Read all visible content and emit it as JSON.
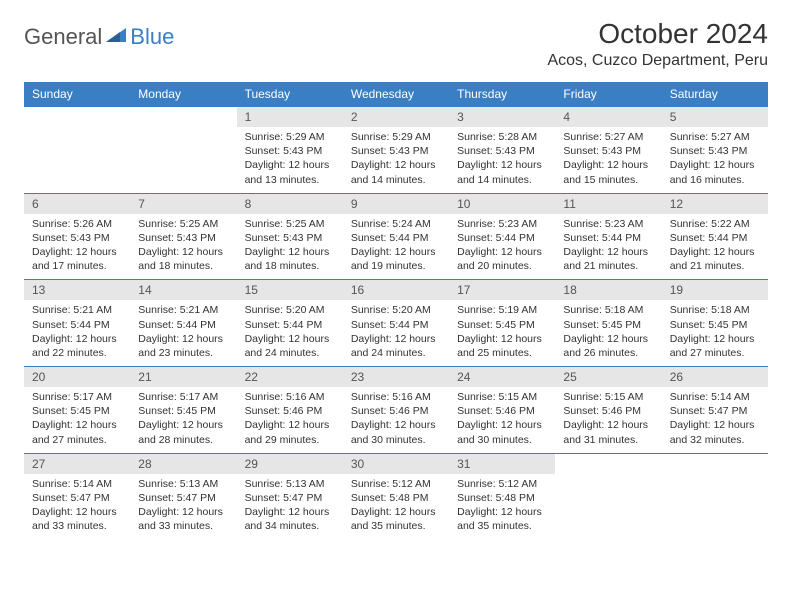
{
  "logo": {
    "text1": "General",
    "text2": "Blue"
  },
  "title": "October 2024",
  "location": "Acos, Cuzco Department, Peru",
  "colors": {
    "header_bg": "#3a7fc4",
    "daynum_bg": "#e6e6e6",
    "border": "#3a7fc4"
  },
  "weekdays": [
    "Sunday",
    "Monday",
    "Tuesday",
    "Wednesday",
    "Thursday",
    "Friday",
    "Saturday"
  ],
  "weeks": [
    [
      null,
      null,
      {
        "n": "1",
        "sr": "5:29 AM",
        "ss": "5:43 PM",
        "dl": "12 hours and 13 minutes."
      },
      {
        "n": "2",
        "sr": "5:29 AM",
        "ss": "5:43 PM",
        "dl": "12 hours and 14 minutes."
      },
      {
        "n": "3",
        "sr": "5:28 AM",
        "ss": "5:43 PM",
        "dl": "12 hours and 14 minutes."
      },
      {
        "n": "4",
        "sr": "5:27 AM",
        "ss": "5:43 PM",
        "dl": "12 hours and 15 minutes."
      },
      {
        "n": "5",
        "sr": "5:27 AM",
        "ss": "5:43 PM",
        "dl": "12 hours and 16 minutes."
      }
    ],
    [
      {
        "n": "6",
        "sr": "5:26 AM",
        "ss": "5:43 PM",
        "dl": "12 hours and 17 minutes."
      },
      {
        "n": "7",
        "sr": "5:25 AM",
        "ss": "5:43 PM",
        "dl": "12 hours and 18 minutes."
      },
      {
        "n": "8",
        "sr": "5:25 AM",
        "ss": "5:43 PM",
        "dl": "12 hours and 18 minutes."
      },
      {
        "n": "9",
        "sr": "5:24 AM",
        "ss": "5:44 PM",
        "dl": "12 hours and 19 minutes."
      },
      {
        "n": "10",
        "sr": "5:23 AM",
        "ss": "5:44 PM",
        "dl": "12 hours and 20 minutes."
      },
      {
        "n": "11",
        "sr": "5:23 AM",
        "ss": "5:44 PM",
        "dl": "12 hours and 21 minutes."
      },
      {
        "n": "12",
        "sr": "5:22 AM",
        "ss": "5:44 PM",
        "dl": "12 hours and 21 minutes."
      }
    ],
    [
      {
        "n": "13",
        "sr": "5:21 AM",
        "ss": "5:44 PM",
        "dl": "12 hours and 22 minutes."
      },
      {
        "n": "14",
        "sr": "5:21 AM",
        "ss": "5:44 PM",
        "dl": "12 hours and 23 minutes."
      },
      {
        "n": "15",
        "sr": "5:20 AM",
        "ss": "5:44 PM",
        "dl": "12 hours and 24 minutes."
      },
      {
        "n": "16",
        "sr": "5:20 AM",
        "ss": "5:44 PM",
        "dl": "12 hours and 24 minutes."
      },
      {
        "n": "17",
        "sr": "5:19 AM",
        "ss": "5:45 PM",
        "dl": "12 hours and 25 minutes."
      },
      {
        "n": "18",
        "sr": "5:18 AM",
        "ss": "5:45 PM",
        "dl": "12 hours and 26 minutes."
      },
      {
        "n": "19",
        "sr": "5:18 AM",
        "ss": "5:45 PM",
        "dl": "12 hours and 27 minutes."
      }
    ],
    [
      {
        "n": "20",
        "sr": "5:17 AM",
        "ss": "5:45 PM",
        "dl": "12 hours and 27 minutes."
      },
      {
        "n": "21",
        "sr": "5:17 AM",
        "ss": "5:45 PM",
        "dl": "12 hours and 28 minutes."
      },
      {
        "n": "22",
        "sr": "5:16 AM",
        "ss": "5:46 PM",
        "dl": "12 hours and 29 minutes."
      },
      {
        "n": "23",
        "sr": "5:16 AM",
        "ss": "5:46 PM",
        "dl": "12 hours and 30 minutes."
      },
      {
        "n": "24",
        "sr": "5:15 AM",
        "ss": "5:46 PM",
        "dl": "12 hours and 30 minutes."
      },
      {
        "n": "25",
        "sr": "5:15 AM",
        "ss": "5:46 PM",
        "dl": "12 hours and 31 minutes."
      },
      {
        "n": "26",
        "sr": "5:14 AM",
        "ss": "5:47 PM",
        "dl": "12 hours and 32 minutes."
      }
    ],
    [
      {
        "n": "27",
        "sr": "5:14 AM",
        "ss": "5:47 PM",
        "dl": "12 hours and 33 minutes."
      },
      {
        "n": "28",
        "sr": "5:13 AM",
        "ss": "5:47 PM",
        "dl": "12 hours and 33 minutes."
      },
      {
        "n": "29",
        "sr": "5:13 AM",
        "ss": "5:47 PM",
        "dl": "12 hours and 34 minutes."
      },
      {
        "n": "30",
        "sr": "5:12 AM",
        "ss": "5:48 PM",
        "dl": "12 hours and 35 minutes."
      },
      {
        "n": "31",
        "sr": "5:12 AM",
        "ss": "5:48 PM",
        "dl": "12 hours and 35 minutes."
      },
      null,
      null
    ]
  ],
  "labels": {
    "sunrise": "Sunrise: ",
    "sunset": "Sunset: ",
    "daylight": "Daylight: "
  }
}
